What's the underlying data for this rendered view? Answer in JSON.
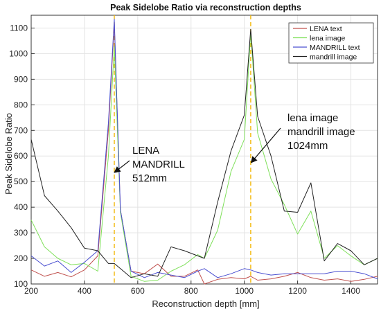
{
  "chart_data": {
    "type": "line",
    "title": "Peak Sidelobe Ratio via reconstruction depths",
    "xlabel": "Reconstruction depth [mm]",
    "ylabel": "Peak Sidelobe Ratio",
    "xlim": [
      200,
      1500
    ],
    "ylim": [
      100,
      1150
    ],
    "xticks": [
      "200",
      "400",
      "600",
      "800",
      "1000",
      "1200",
      "1400"
    ],
    "yticks": [
      "100",
      "200",
      "300",
      "400",
      "500",
      "600",
      "700",
      "800",
      "900",
      "1000",
      "1100"
    ],
    "grid": true,
    "legend_position": "top-right",
    "x": [
      200,
      250,
      300,
      350,
      400,
      450,
      490,
      512,
      535,
      575,
      625,
      675,
      725,
      775,
      825,
      850,
      900,
      950,
      1000,
      1024,
      1050,
      1100,
      1150,
      1200,
      1250,
      1300,
      1350,
      1400,
      1450,
      1500
    ],
    "series": [
      {
        "name": "LENA text",
        "color": "#c0504d",
        "values": [
          155,
          130,
          145,
          128,
          155,
          210,
          700,
          1120,
          390,
          150,
          140,
          178,
          130,
          130,
          155,
          100,
          118,
          125,
          120,
          130,
          115,
          120,
          130,
          145,
          125,
          115,
          120,
          110,
          118,
          130
        ]
      },
      {
        "name": "lena image",
        "color": "#7fe05a",
        "values": [
          350,
          245,
          200,
          175,
          180,
          150,
          600,
          1030,
          380,
          130,
          110,
          115,
          150,
          175,
          215,
          200,
          310,
          540,
          665,
          1080,
          690,
          510,
          410,
          295,
          385,
          200,
          250,
          210,
          175,
          200
        ]
      },
      {
        "name": "MANDRILL text",
        "color": "#4a4fd0",
        "values": [
          210,
          170,
          190,
          145,
          185,
          230,
          730,
          1135,
          390,
          150,
          125,
          145,
          135,
          125,
          150,
          160,
          125,
          140,
          160,
          155,
          145,
          135,
          140,
          140,
          140,
          140,
          150,
          150,
          140,
          120
        ]
      },
      {
        "name": "mandrill image",
        "color": "#222222",
        "values": [
          665,
          445,
          385,
          320,
          240,
          230,
          180,
          180,
          160,
          125,
          140,
          130,
          245,
          230,
          210,
          200,
          420,
          620,
          760,
          1095,
          755,
          600,
          385,
          380,
          495,
          190,
          258,
          230,
          175,
          200
        ]
      }
    ],
    "reference_lines": [
      512,
      1024
    ],
    "reference_line_color": "#f2b705",
    "annotations": [
      {
        "lines": [
          "LENA",
          "MANDRILL",
          "512mm"
        ],
        "arrow_to": [
          512,
          520
        ]
      },
      {
        "lines": [
          "lena image",
          "mandrill image",
          "1024mm"
        ],
        "arrow_to": [
          1024,
          560
        ]
      }
    ]
  }
}
